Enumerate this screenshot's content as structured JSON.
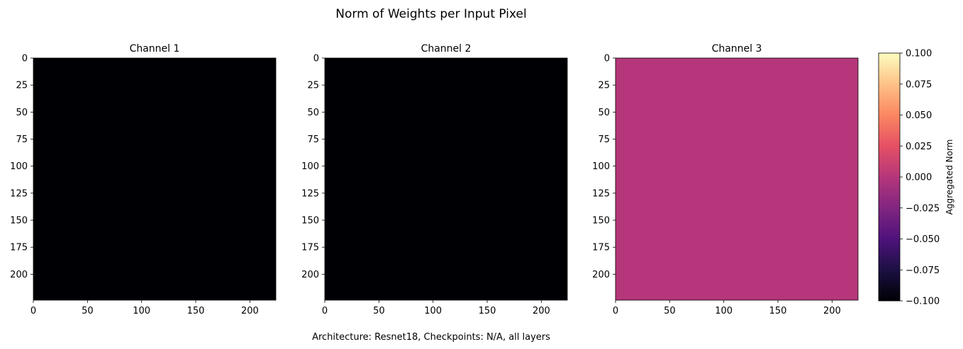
{
  "chart_data": {
    "type": "heatmap",
    "title": "Norm of Weights per Input Pixel",
    "caption": "Architecture: Resnet18, Checkpoints: N/A, all layers",
    "colormap": "magma",
    "panels": [
      {
        "title": "Channel 1",
        "value": -0.1,
        "x_ticks": [
          "0",
          "50",
          "100",
          "150",
          "200"
        ],
        "y_ticks": [
          "0",
          "25",
          "50",
          "75",
          "100",
          "125",
          "150",
          "175",
          "200"
        ]
      },
      {
        "title": "Channel 2",
        "value": -0.1,
        "x_ticks": [
          "0",
          "50",
          "100",
          "150",
          "200"
        ],
        "y_ticks": [
          "0",
          "25",
          "50",
          "75",
          "100",
          "125",
          "150",
          "175",
          "200"
        ]
      },
      {
        "title": "Channel 3",
        "value": 0.0,
        "x_ticks": [
          "0",
          "50",
          "100",
          "150",
          "200"
        ],
        "y_ticks": [
          "0",
          "25",
          "50",
          "75",
          "100",
          "125",
          "150",
          "175",
          "200"
        ]
      }
    ],
    "image_extent": [
      0,
      224
    ],
    "colorbar": {
      "label": "Aggregated Norm",
      "range": [
        -0.1,
        0.1
      ],
      "ticks": [
        "0.100",
        "0.075",
        "0.050",
        "0.025",
        "0.000",
        "−0.025",
        "−0.050",
        "−0.075",
        "−0.100"
      ]
    }
  }
}
